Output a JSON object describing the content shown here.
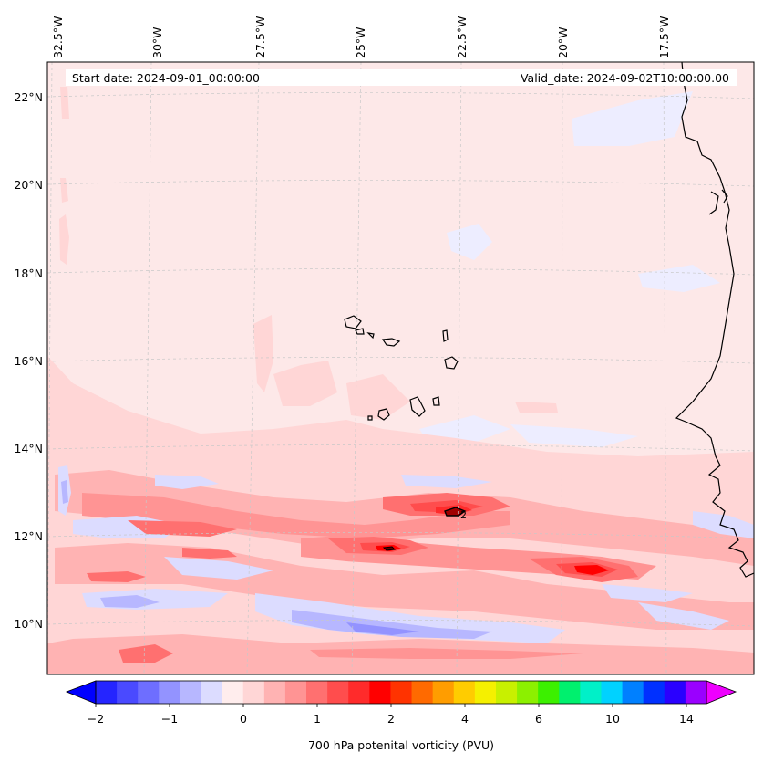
{
  "map": {
    "header": {
      "start_date": "Start date: 2024-09-01_00:00:00",
      "valid_date": "Valid_date: 2024-09-02T10:00:00.00"
    },
    "lon_labels": [
      "32.5°W",
      "30°W",
      "27.5°W",
      "25°W",
      "22.5°W",
      "20°W",
      "17.5°W"
    ],
    "lat_labels": [
      "22°N",
      "20°N",
      "18°N",
      "16°N",
      "14°N",
      "12°N",
      "10°N"
    ],
    "contour_label": "2",
    "colors": {
      "background_field": "#fde8e8",
      "coastline": "#000000",
      "gridline": "#c8c8c8"
    }
  },
  "colorbar": {
    "label": "700 hPa potenital vorticity (PVU)",
    "tick_labels": [
      "−2",
      "−1",
      "0",
      "1",
      "2",
      "4",
      "6",
      "10",
      "14"
    ],
    "colors": [
      "#0000ff",
      "#2525ff",
      "#4a4aff",
      "#6e6eff",
      "#9393ff",
      "#b7b7ff",
      "#dcdcff",
      "#ffeded",
      "#ffd6d6",
      "#ffb3b3",
      "#ff9494",
      "#ff7070",
      "#ff4d4d",
      "#ff2b2b",
      "#ff0000",
      "#ff3300",
      "#ff6a00",
      "#ff9d00",
      "#ffcc00",
      "#f5f000",
      "#c8f000",
      "#8cf000",
      "#3cf000",
      "#00f06e",
      "#00f0c8",
      "#00d2ff",
      "#0080ff",
      "#0030ff",
      "#2a00ff",
      "#9a00ff",
      "#ee00ff"
    ]
  }
}
